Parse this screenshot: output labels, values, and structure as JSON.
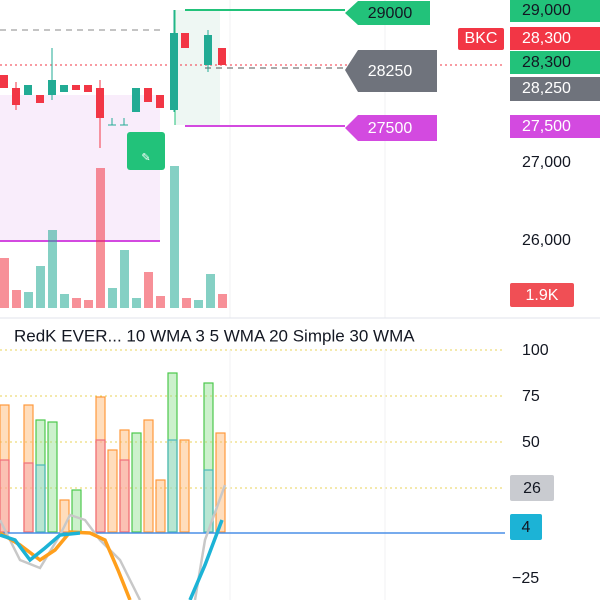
{
  "price_axis": {
    "ticks": [
      "27,000",
      "26,000"
    ]
  },
  "price_badges": {
    "target": "29,000",
    "symbol": "BKC",
    "last": "28,300",
    "bid": "28,300",
    "stop_avg": "28,250",
    "stop": "27,500",
    "volume": "1.9K"
  },
  "chart_labels": {
    "target": "29000",
    "entry": "28250",
    "stop": "27500"
  },
  "indicator": {
    "title": "RedK EVER... 10 WMA 3 5 WMA 20 Simple 30 WMA",
    "ticks": [
      "100",
      "75",
      "50",
      "−25"
    ],
    "badges": {
      "upper": "26",
      "lower": "4"
    }
  }
}
